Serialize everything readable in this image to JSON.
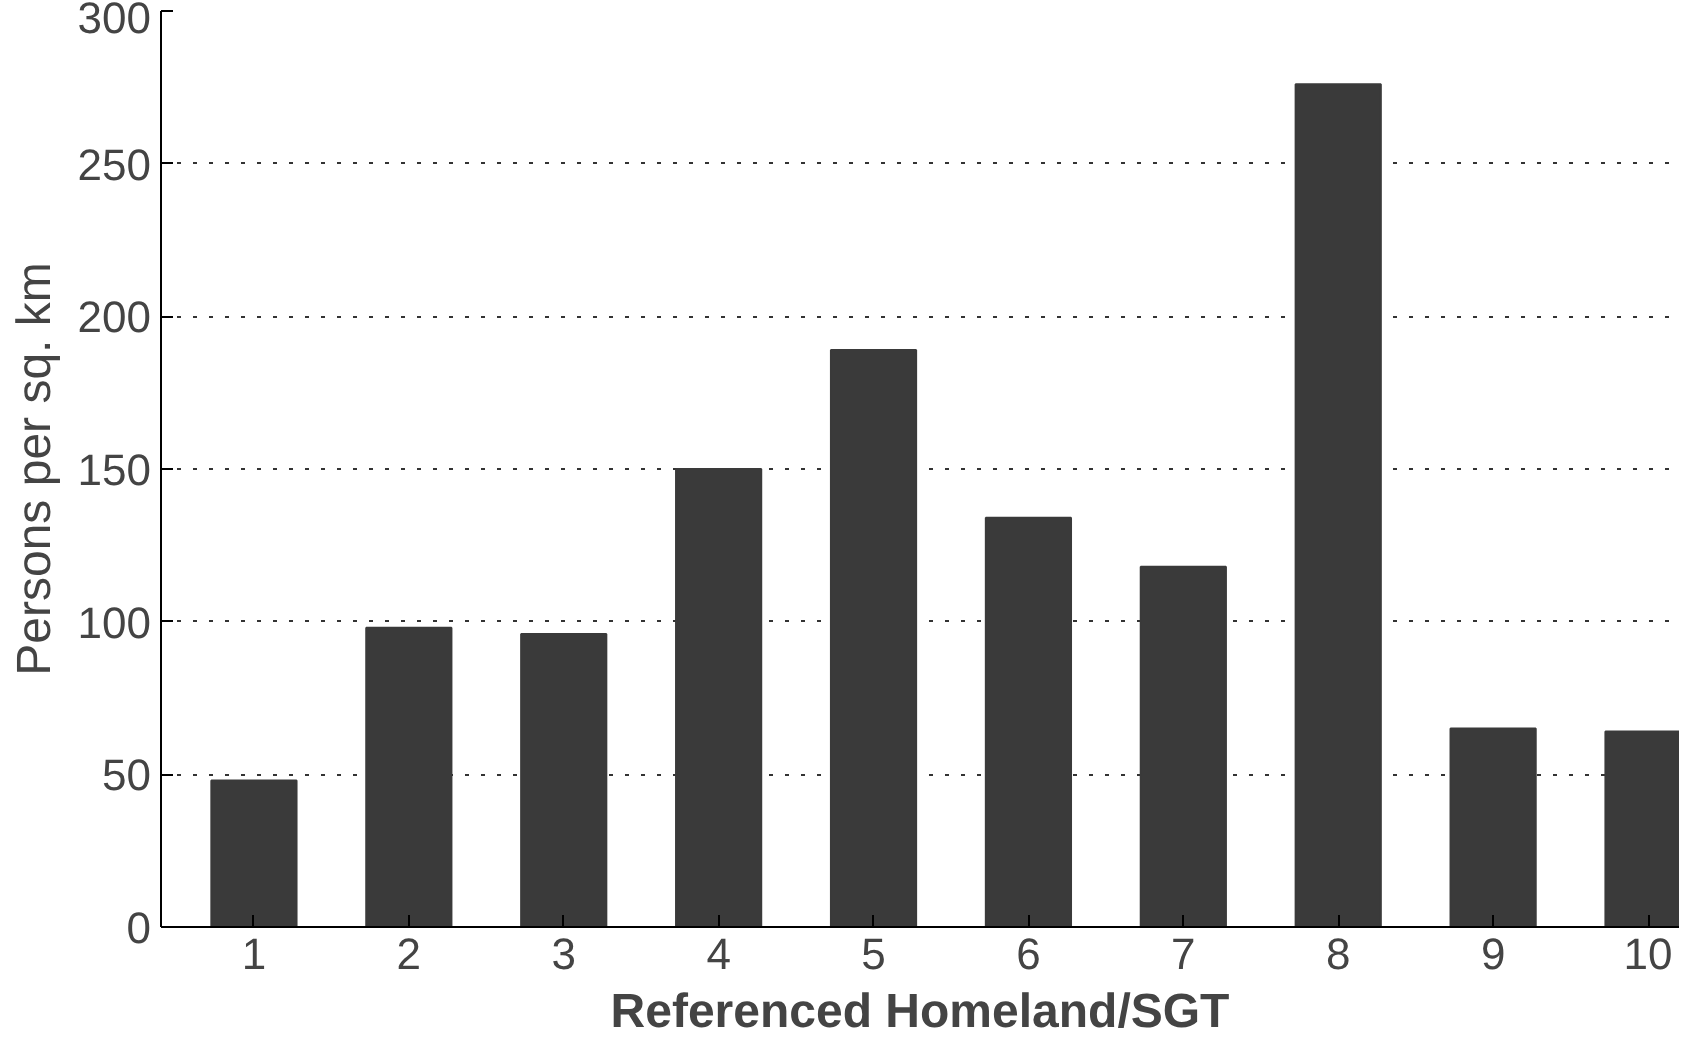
{
  "chart_data": {
    "type": "bar",
    "xlabel": "Referenced Homeland/SGT",
    "ylabel": "Persons per sq. km",
    "categories": [
      "1",
      "2",
      "3",
      "4",
      "5",
      "6",
      "7",
      "8",
      "9",
      "10"
    ],
    "values": [
      48,
      98,
      96,
      150,
      189,
      134,
      118,
      276,
      65,
      64
    ],
    "color": "#3a3a3a",
    "ylim": [
      0,
      300
    ],
    "yticks": [
      0,
      50,
      100,
      150,
      200,
      250,
      300
    ],
    "grid": "y"
  }
}
